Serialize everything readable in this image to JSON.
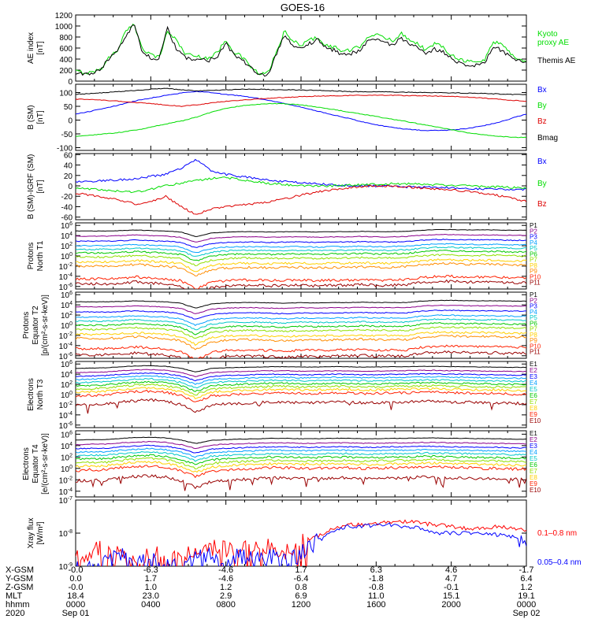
{
  "title": "GOES-16",
  "chart_data": [
    {
      "id": "ae",
      "type": "line",
      "ylabel": [
        "AE index",
        "[nT]"
      ],
      "yticks": [
        0,
        200,
        400,
        600,
        800,
        1000,
        1200
      ],
      "ylim": [
        0,
        1200
      ],
      "log": false,
      "series": [
        {
          "name": "Kyoto\nproxy AE",
          "color": "#00dd00",
          "values": [
            180,
            150,
            160,
            220,
            430,
            560,
            900,
            1020,
            600,
            480,
            430,
            900,
            760,
            520,
            460,
            440,
            420,
            520,
            760,
            520,
            430,
            260,
            120,
            140,
            500,
            900,
            720,
            660,
            740,
            800,
            640,
            620,
            540,
            560,
            620,
            820,
            840,
            780,
            740,
            860,
            760,
            680,
            560,
            680,
            620,
            480,
            400,
            360,
            340,
            380,
            720,
            680,
            520,
            400,
            340
          ]
        },
        {
          "name": "Themis AE",
          "color": "#000000",
          "values": [
            150,
            130,
            140,
            200,
            420,
            560,
            820,
            1050,
            520,
            420,
            400,
            950,
            600,
            430,
            400,
            390,
            380,
            460,
            700,
            460,
            380,
            230,
            100,
            120,
            460,
            860,
            620,
            600,
            680,
            760,
            600,
            560,
            480,
            500,
            560,
            740,
            760,
            700,
            660,
            780,
            660,
            600,
            480,
            580,
            540,
            420,
            330,
            300,
            280,
            330,
            620,
            560,
            440,
            360,
            330
          ]
        }
      ]
    },
    {
      "id": "bsm",
      "type": "line",
      "ylabel": [
        "B (SM)",
        "[nT]"
      ],
      "yticks": [
        -100,
        -50,
        0,
        50,
        100
      ],
      "ylim": [
        -110,
        130
      ],
      "log": false,
      "series": [
        {
          "name": "Bx",
          "color": "#0000ff",
          "values": [
            22,
            32,
            44,
            56,
            70,
            80,
            90,
            98,
            104,
            100,
            93,
            88,
            80,
            70,
            59,
            47,
            34,
            21,
            8,
            -5,
            -17,
            -26,
            -33,
            -37,
            -38,
            -36,
            -31,
            -22,
            -10,
            6,
            22
          ]
        },
        {
          "name": "By",
          "color": "#00dd00",
          "values": [
            -58,
            -55,
            -50,
            -44,
            -36,
            -26,
            -14,
            -4,
            10,
            28,
            42,
            52,
            57,
            60,
            59,
            55,
            48,
            40,
            31,
            22,
            13,
            4,
            -5,
            -15,
            -25,
            -35,
            -45,
            -52,
            -58,
            -62,
            -63
          ]
        },
        {
          "name": "Bz",
          "color": "#dd0000",
          "values": [
            76,
            75,
            72,
            68,
            64,
            60,
            55,
            50,
            55,
            62,
            68,
            72,
            76,
            80,
            82,
            85,
            87,
            88,
            89,
            90,
            91,
            90,
            89,
            88,
            87,
            86,
            84,
            80,
            76,
            72,
            68
          ]
        },
        {
          "name": "Bmag",
          "color": "#000000",
          "values": [
            94,
            96,
            100,
            104,
            108,
            112,
            115,
            110,
            106,
            108,
            110,
            112,
            112,
            111,
            110,
            109,
            108,
            106,
            104,
            103,
            103,
            102,
            101,
            100,
            100,
            99,
            98,
            97,
            95,
            93,
            92
          ]
        }
      ]
    },
    {
      "id": "bigrf",
      "type": "line",
      "ylabel": [
        "B (SM)-IGRF (SM)",
        "[nT]"
      ],
      "yticks": [
        -60,
        -40,
        -20,
        0,
        20,
        40,
        60
      ],
      "ylim": [
        -65,
        62
      ],
      "log": false,
      "series": [
        {
          "name": "Bx",
          "color": "#0000ff",
          "values": [
            8,
            9,
            10,
            12,
            14,
            18,
            22,
            34,
            50,
            30,
            22,
            18,
            14,
            10,
            8,
            6,
            4,
            2,
            1,
            0,
            0,
            -1,
            -2,
            -2,
            -3,
            -4,
            -5,
            -6,
            -6,
            -7,
            -7
          ]
        },
        {
          "name": "By",
          "color": "#00dd00",
          "values": [
            -4,
            -6,
            -8,
            -10,
            -12,
            -6,
            0,
            5,
            10,
            14,
            16,
            12,
            8,
            4,
            2,
            1,
            0,
            0,
            1,
            2,
            3,
            4,
            4,
            3,
            2,
            1,
            0,
            -1,
            -2,
            -3,
            -4
          ]
        },
        {
          "name": "Bz",
          "color": "#dd0000",
          "values": [
            -14,
            -18,
            -22,
            -28,
            -35,
            -30,
            -20,
            -40,
            -55,
            -45,
            -40,
            -36,
            -34,
            -30,
            -24,
            -18,
            -12,
            -8,
            -4,
            -2,
            0,
            0,
            -2,
            -4,
            -6,
            -8,
            -10,
            -14,
            -18,
            -24,
            -30
          ]
        }
      ]
    },
    {
      "id": "protons-t1",
      "type": "line",
      "ylabel": [
        "Protons",
        "North T1"
      ],
      "ytick_labels": [
        "10^-6",
        "10^-4",
        "10^-2",
        "10^0",
        "10^2",
        "10^4",
        "10^6"
      ],
      "ytick_exps": [
        -6,
        -4,
        -2,
        0,
        2,
        4,
        6
      ],
      "ylim_exp": [
        -6.5,
        6.5
      ],
      "log": true,
      "profile_exp": [
        0,
        0,
        0,
        0.1,
        0.3,
        0.1,
        0,
        -0.3,
        -1.6,
        -0.6,
        -0.3,
        -0.2,
        -0.2,
        -0.3,
        -0.2,
        -0.2,
        -0.3,
        -0.2,
        -0.2,
        -0.1,
        -0.2,
        -0.2,
        -0.1,
        0.2,
        0.4,
        0.4,
        0.3,
        0.3,
        0.3,
        0.2,
        0.2
      ],
      "series": [
        {
          "name": "P1",
          "color": "#000000",
          "level_exp": 4.9
        },
        {
          "name": "P2",
          "color": "#8b008b",
          "level_exp": 3.9
        },
        {
          "name": "P3",
          "color": "#0000ff",
          "level_exp": 2.9
        },
        {
          "name": "P4",
          "color": "#00a0ff",
          "level_exp": 2.0
        },
        {
          "name": "P5",
          "color": "#00c8c8",
          "level_exp": 1.3
        },
        {
          "name": "P6",
          "color": "#00c800",
          "level_exp": 0.6
        },
        {
          "name": "P7",
          "color": "#90e000",
          "level_exp": -0.2
        },
        {
          "name": "P8",
          "color": "#ffd000",
          "level_exp": -1.2
        },
        {
          "name": "P9",
          "color": "#ff8c00",
          "level_exp": -2.0
        },
        {
          "name": "P10",
          "color": "#ff2000",
          "level_exp": -4.5
        },
        {
          "name": "P11",
          "color": "#990000",
          "level_exp": -5.5
        }
      ]
    },
    {
      "id": "protons-t2",
      "type": "line",
      "ylabel": [
        "Protons",
        "Equator T2",
        "[p/(cm²-s-sr-keV)]"
      ],
      "ytick_labels": [
        "10^-6",
        "10^-4",
        "10^-2",
        "10^0",
        "10^2",
        "10^4",
        "10^6"
      ],
      "ytick_exps": [
        -6,
        -4,
        -2,
        0,
        2,
        4,
        6
      ],
      "ylim_exp": [
        -6.5,
        6.5
      ],
      "log": true,
      "profile_exp": [
        0,
        0,
        0,
        0.1,
        0.3,
        0.1,
        0,
        -0.4,
        -1.8,
        -0.6,
        -0.3,
        -0.2,
        -0.2,
        -0.3,
        -0.4,
        -0.2,
        -0.3,
        -0.2,
        -0.2,
        -0.1,
        -0.2,
        -0.2,
        -0.2,
        0.2,
        0.4,
        0.4,
        0.3,
        0.3,
        0.3,
        0.2,
        0.2
      ],
      "series": [
        {
          "name": "P1",
          "color": "#000000",
          "level_exp": 4.6
        },
        {
          "name": "P2",
          "color": "#8b008b",
          "level_exp": 3.6
        },
        {
          "name": "P3",
          "color": "#0000ff",
          "level_exp": 2.6
        },
        {
          "name": "P4",
          "color": "#00a0ff",
          "level_exp": 1.6
        },
        {
          "name": "P5",
          "color": "#00c8c8",
          "level_exp": 0.8
        },
        {
          "name": "P6",
          "color": "#00c800",
          "level_exp": 0.0
        },
        {
          "name": "P7",
          "color": "#90e000",
          "level_exp": -0.8
        },
        {
          "name": "P8",
          "color": "#ffd000",
          "level_exp": -1.8
        },
        {
          "name": "P9",
          "color": "#ff8c00",
          "level_exp": -2.6
        },
        {
          "name": "P10",
          "color": "#ff2000",
          "level_exp": -4.6
        },
        {
          "name": "P11",
          "color": "#990000",
          "level_exp": -5.8
        }
      ]
    },
    {
      "id": "electrons-t3",
      "type": "line",
      "ylabel": [
        "Electrons",
        "North T3"
      ],
      "ytick_labels": [
        "10^-6",
        "10^-4",
        "10^-2",
        "10^0",
        "10^2",
        "10^4",
        "10^6"
      ],
      "ytick_exps": [
        -6,
        -4,
        -2,
        0,
        2,
        4,
        6
      ],
      "ylim_exp": [
        -6.5,
        6.5
      ],
      "log": true,
      "profile_exp": [
        -0.4,
        -0.3,
        -0.2,
        0.1,
        0.3,
        0.4,
        0.2,
        -0.3,
        -1.4,
        -0.4,
        -0.2,
        -0.1,
        0,
        0.1,
        0.1,
        0,
        0,
        0.1,
        0.1,
        0,
        0,
        0.1,
        0.1,
        0.2,
        0.2,
        0.1,
        0.1,
        0,
        0,
        -0.1,
        -0.1
      ],
      "series": [
        {
          "name": "E1",
          "color": "#000000",
          "level_exp": 5.4
        },
        {
          "name": "E2",
          "color": "#8b008b",
          "level_exp": 4.6
        },
        {
          "name": "E3",
          "color": "#0000ff",
          "level_exp": 3.9
        },
        {
          "name": "E4",
          "color": "#00a0ff",
          "level_exp": 3.3
        },
        {
          "name": "E5",
          "color": "#00c8c8",
          "level_exp": 2.7
        },
        {
          "name": "E6",
          "color": "#00c800",
          "level_exp": 2.1
        },
        {
          "name": "E7",
          "color": "#90e000",
          "level_exp": 1.5
        },
        {
          "name": "E8",
          "color": "#ffd000",
          "level_exp": 0.9
        },
        {
          "name": "E9",
          "color": "#ff2000",
          "level_exp": 0.2
        },
        {
          "name": "E10",
          "color": "#990000",
          "level_exp": -1.6
        }
      ]
    },
    {
      "id": "electrons-t4",
      "type": "line",
      "ylabel": [
        "Electrons",
        "Equator T4",
        "[e/(cm²-s-sr-keV)]"
      ],
      "ytick_labels": [
        "10^-4",
        "10^-2",
        "10^0",
        "10^2",
        "10^4",
        "10^6"
      ],
      "ytick_exps": [
        -4,
        -2,
        0,
        2,
        4,
        6
      ],
      "ylim_exp": [
        -5,
        6.6
      ],
      "log": true,
      "profile_exp": [
        -0.3,
        -0.2,
        -0.2,
        0.1,
        0.3,
        0.4,
        0.2,
        -0.3,
        -1.2,
        -0.4,
        -0.2,
        -0.1,
        0,
        0.1,
        0.1,
        0,
        0,
        0.1,
        0.1,
        0,
        0,
        0.1,
        0.1,
        0.2,
        0.2,
        0.1,
        0.1,
        0,
        0,
        -0.1,
        -0.1
      ],
      "series": [
        {
          "name": "E1",
          "color": "#000000",
          "level_exp": 5.2
        },
        {
          "name": "E2",
          "color": "#8b008b",
          "level_exp": 4.4
        },
        {
          "name": "E3",
          "color": "#0000ff",
          "level_exp": 3.7
        },
        {
          "name": "E4",
          "color": "#00a0ff",
          "level_exp": 3.1
        },
        {
          "name": "E5",
          "color": "#00c8c8",
          "level_exp": 2.5
        },
        {
          "name": "E6",
          "color": "#00c800",
          "level_exp": 1.9
        },
        {
          "name": "E7",
          "color": "#90e000",
          "level_exp": 1.3
        },
        {
          "name": "E8",
          "color": "#ffd000",
          "level_exp": 0.7
        },
        {
          "name": "E9",
          "color": "#ff2000",
          "level_exp": 0.0
        },
        {
          "name": "E10",
          "color": "#990000",
          "level_exp": -1.8
        }
      ]
    },
    {
      "id": "xray",
      "type": "line",
      "ylabel": [
        "Xray flux",
        "[W/m²]"
      ],
      "ytick_labels": [
        "10^-9",
        "10^-8",
        "10^-7"
      ],
      "ytick_exps": [
        -9,
        -8,
        -7
      ],
      "ylim_exp": [
        -9,
        -7
      ],
      "log": true,
      "series": [
        {
          "name": "0.1–0.8 nm",
          "color": "#ff0000",
          "values_exp": [
            -8.8,
            -8.6,
            -8.4,
            -8.7,
            -8.9,
            -8.5,
            -8.8,
            -8.7,
            -8.6,
            -8.4,
            -8.5,
            -8.3,
            -8.5,
            -8.4,
            -8.6,
            -8.3,
            -8.1,
            -7.9,
            -7.75,
            -7.75,
            -7.7,
            -7.65,
            -7.65,
            -7.7,
            -7.75,
            -7.8,
            -7.85,
            -7.85,
            -7.8,
            -7.85,
            -7.9
          ]
        },
        {
          "name": "0.05–0.4 nm",
          "color": "#0000ff",
          "values_exp": [
            -9.0,
            -9.0,
            -8.9,
            -8.7,
            -9.0,
            -8.8,
            -9.0,
            -9.0,
            -8.8,
            -8.7,
            -8.8,
            -8.7,
            -8.8,
            -8.7,
            -8.9,
            -8.6,
            -8.3,
            -8.0,
            -7.8,
            -7.8,
            -7.75,
            -7.75,
            -7.8,
            -7.85,
            -8.0,
            -8.0,
            -8.0,
            -8.0,
            -8.05,
            -8.1,
            -8.4
          ]
        }
      ]
    }
  ],
  "ephemeris": {
    "rows": [
      {
        "label": "X-GSM",
        "values": [
          "-0.0",
          "-6.3",
          "-4.6",
          "1.7",
          "6.3",
          "4.6",
          "-1.7"
        ]
      },
      {
        "label": "Y-GSM",
        "values": [
          "0.0",
          "1.7",
          "-4.6",
          "-6.4",
          "-1.8",
          "4.7",
          "6.4"
        ]
      },
      {
        "label": "Z-GSM",
        "values": [
          "-0.0",
          "1.0",
          "1.2",
          "0.8",
          "-0.8",
          "-0.1",
          "1.2"
        ]
      },
      {
        "label": "MLT",
        "values": [
          "18.4",
          "23.0",
          "2.9",
          "6.9",
          "11.0",
          "15.1",
          "19.1"
        ]
      },
      {
        "label": "hhmm",
        "values": [
          "0000",
          "0400",
          "0800",
          "1200",
          "1600",
          "2000",
          "0000"
        ]
      },
      {
        "label": "2020",
        "values": [
          "Sep 01",
          "",
          "",
          "",
          "",
          "",
          "Sep 02"
        ]
      }
    ]
  }
}
